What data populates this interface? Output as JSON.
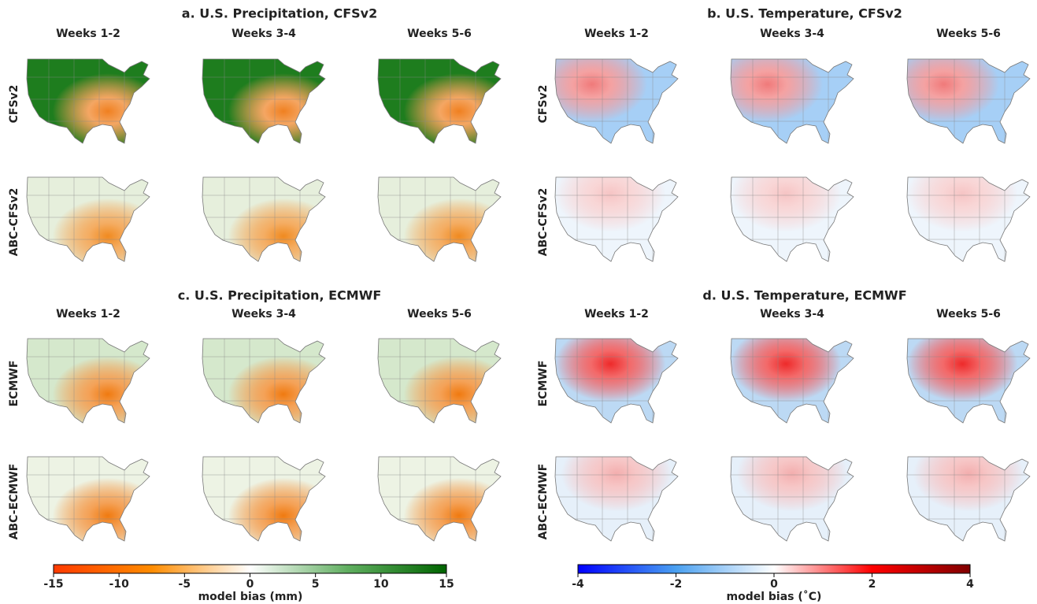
{
  "panels": [
    {
      "title": "a. U.S. Precipitation, CFSv2",
      "columns": [
        "Weeks 1-2",
        "Weeks 3-4",
        "Weeks 5-6"
      ],
      "rows": [
        "CFSv2",
        "ABC-CFSv2"
      ]
    },
    {
      "title": "b. U.S. Temperature, CFSv2",
      "columns": [
        "Weeks 1-2",
        "Weeks 3-4",
        "Weeks 5-6"
      ],
      "rows": [
        "CFSv2",
        "ABC-CFSv2"
      ]
    },
    {
      "title": "c. U.S. Precipitation, ECMWF",
      "columns": [
        "Weeks 1-2",
        "Weeks 3-4",
        "Weeks 5-6"
      ],
      "rows": [
        "ECMWF",
        "ABC-ECMWF"
      ]
    },
    {
      "title": "d. U.S. Temperature, ECMWF",
      "columns": [
        "Weeks 1-2",
        "Weeks 3-4",
        "Weeks 5-6"
      ],
      "rows": [
        "ECMWF",
        "ABC-ECMWF"
      ]
    }
  ],
  "colorbars": [
    {
      "label": "model bias (mm)",
      "lim": [
        -15,
        15
      ],
      "ticks": [
        -15,
        -10,
        -5,
        0,
        5,
        10,
        15
      ],
      "colors": [
        "#ff3a00",
        "#ff8c00",
        "#ffffff",
        "#5fae5f",
        "#006400"
      ]
    },
    {
      "label": "model bias (˚C)",
      "lim": [
        -4,
        4
      ],
      "ticks": [
        -4,
        -2,
        0,
        2,
        4
      ],
      "colors": [
        "#0000ff",
        "#4aa0f0",
        "#ffffff",
        "#ff0000",
        "#800000"
      ]
    }
  ]
}
